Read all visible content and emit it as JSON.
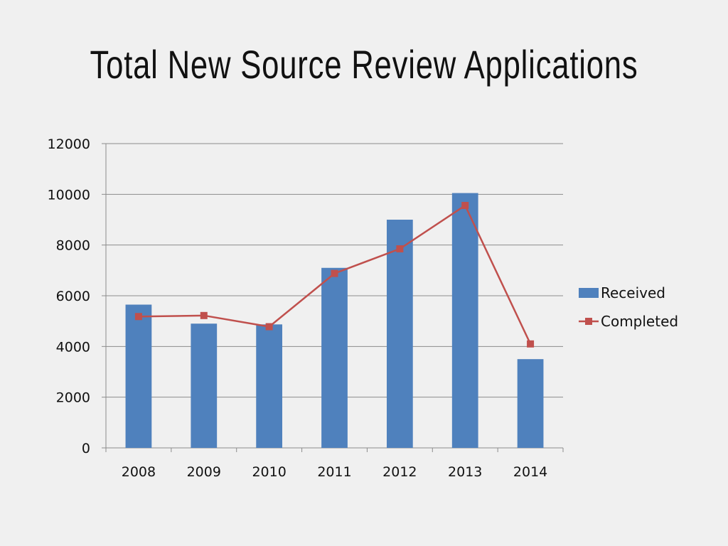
{
  "slide": {
    "title": "Total New Source Review Applications"
  },
  "chart_data": {
    "type": "bar",
    "title": "Total New Source Review Applications",
    "xlabel": "",
    "ylabel": "",
    "categories": [
      "2008",
      "2009",
      "2010",
      "2011",
      "2012",
      "2013",
      "2014"
    ],
    "ylim": [
      0,
      12000
    ],
    "yticks": [
      0,
      2000,
      4000,
      6000,
      8000,
      10000,
      12000
    ],
    "grid": true,
    "legend_position": "right",
    "series": [
      {
        "name": "Received",
        "type": "bar",
        "color": "#4f81bd",
        "values": [
          5650,
          4900,
          4870,
          7100,
          9000,
          10050,
          3500
        ]
      },
      {
        "name": "Completed",
        "type": "line",
        "color": "#c0504d",
        "marker": "square",
        "values": [
          5180,
          5220,
          4780,
          6880,
          7850,
          9560,
          4100
        ]
      }
    ]
  }
}
